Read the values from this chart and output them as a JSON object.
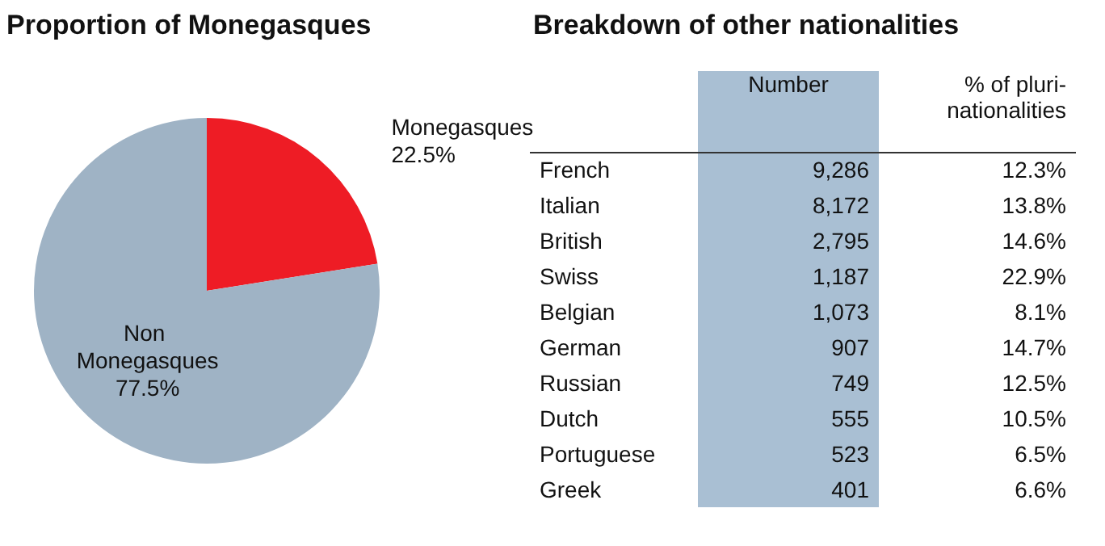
{
  "chart_data": [
    {
      "type": "pie",
      "title": "Proportion of Monegasques",
      "categories": [
        "Monegasques",
        "Non Monegasques"
      ],
      "values": [
        22.5,
        77.5
      ],
      "value_labels": [
        "22.5%",
        "77.5%"
      ],
      "colors": [
        "#ee1c25",
        "#9fb3c5"
      ]
    },
    {
      "type": "other",
      "title": "Breakdown of other nationalities",
      "categories": [
        "French",
        "Italian",
        "British",
        "Swiss",
        "Belgian",
        "German",
        "Russian",
        "Dutch",
        "Portuguese",
        "Greek"
      ],
      "series": [
        {
          "name": "Number",
          "color": "#a9bfd3",
          "values": [
            9286,
            8172,
            2795,
            1187,
            1073,
            907,
            749,
            555,
            523,
            401
          ],
          "value_labels": [
            "9,286",
            "8,172",
            "2,795",
            "1,187",
            "1,073",
            "907",
            "749",
            "555",
            "523",
            "401"
          ]
        },
        {
          "name": "% of pluri-nationalities",
          "values": [
            12.3,
            13.8,
            14.6,
            22.9,
            8.1,
            14.7,
            12.5,
            10.5,
            6.5,
            6.6
          ],
          "value_labels": [
            "12.3%",
            "13.8%",
            "14.6%",
            "22.9%",
            "8.1%",
            "14.7%",
            "12.5%",
            "10.5%",
            "6.5%",
            "6.6%"
          ]
        }
      ]
    }
  ]
}
